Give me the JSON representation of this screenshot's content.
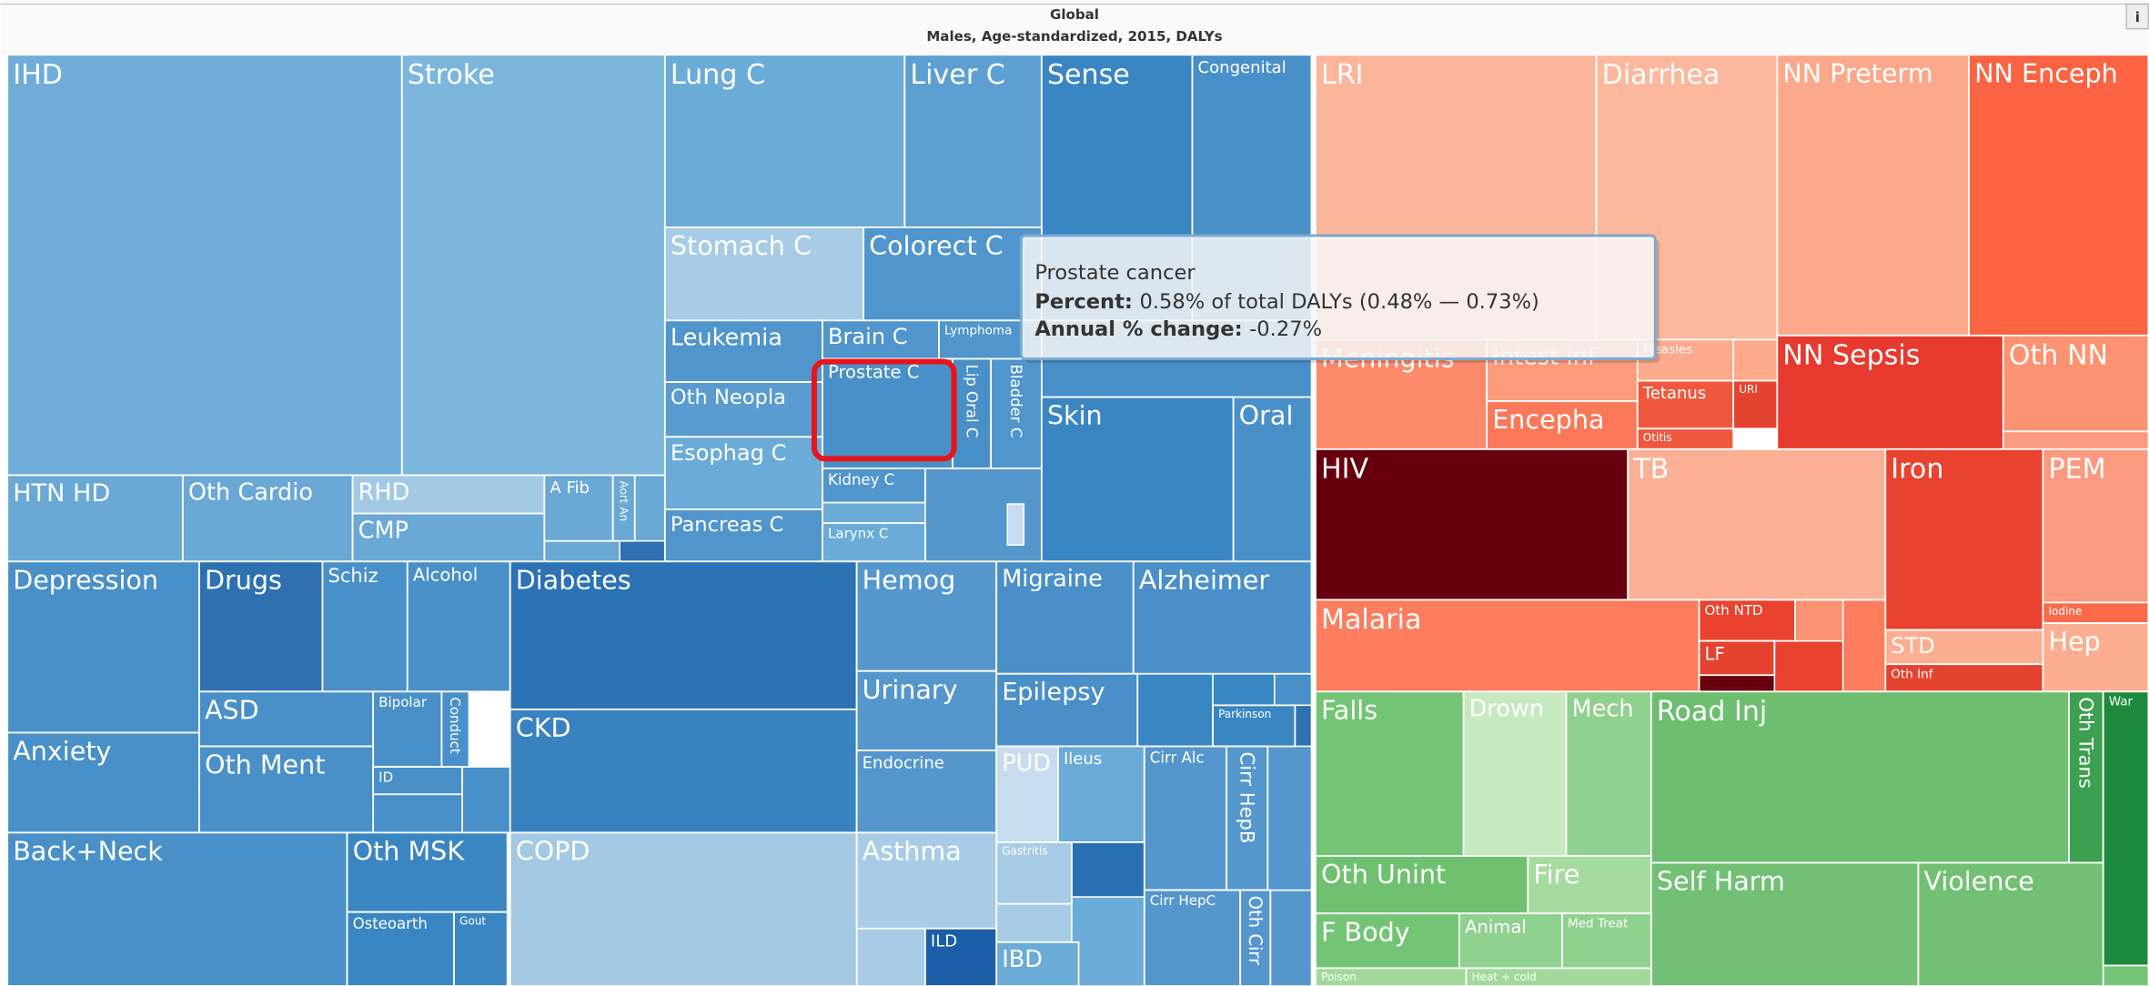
{
  "header": {
    "region": "Global",
    "subtitle": "Males, Age-standardized, 2015, DALYs",
    "info": "i"
  },
  "cells": [
    "IHD",
    "Stroke",
    "HTN HD",
    "Oth Cardio",
    "RHD",
    "CMP",
    "A Fib",
    "Aort An",
    "Lung C",
    "Liver C",
    "Sense",
    "Congenital",
    "Stomach C",
    "Colorect C",
    "Leukemia",
    "Brain C",
    "Lymphoma",
    "Oth Neopla",
    "Prostate C",
    "Lip Oral C",
    "Bladder C",
    "Esophag C",
    "Kidney C",
    "Pancreas C",
    "Larynx C",
    "Skin",
    "Oral",
    "Depression",
    "Anxiety",
    "Drugs",
    "Schiz",
    "Alcohol",
    "ASD",
    "Bipolar",
    "Conduct",
    "Oth Ment",
    "ID",
    "Diabetes",
    "CKD",
    "Hemog",
    "Urinary",
    "Endocrine",
    "Migraine",
    "Alzheimer",
    "Epilepsy",
    "Parkinson",
    "PUD",
    "Ileus",
    "Cirr Alc",
    "Cirr HepB",
    "Gastritis",
    "Cirr HepC",
    "Oth Cirr",
    "IBD",
    "Back+Neck",
    "Oth MSK",
    "Osteoarth",
    "Gout",
    "COPD",
    "Asthma",
    "ILD",
    "LRI",
    "Diarrhea",
    "NN Preterm",
    "NN Enceph",
    "Meningitis",
    "Intest Inf",
    "Measles",
    "Encepha",
    "Tetanus",
    "URI",
    "Otitis",
    "NN Sepsis",
    "Oth NN",
    "HIV",
    "TB",
    "Iron",
    "PEM",
    "Malaria",
    "Oth NTD",
    "LF",
    "STD",
    "Oth Inf",
    "Iodine",
    "Hep",
    "Falls",
    "Drown",
    "Mech",
    "Road Inj",
    "Oth Trans",
    "War",
    "Oth Unint",
    "Fire",
    "Self Harm",
    "Violence",
    "F Body",
    "Animal",
    "Med Treat",
    "Poison",
    "Heat + cold"
  ],
  "tooltip": {
    "title": "Prostate cancer",
    "rows": [
      {
        "key": "Percent:",
        "value": "0.58% of total DALYs (0.48% — 0.73%)"
      },
      {
        "key": "Annual % change:",
        "value": "-0.27%"
      }
    ]
  }
}
